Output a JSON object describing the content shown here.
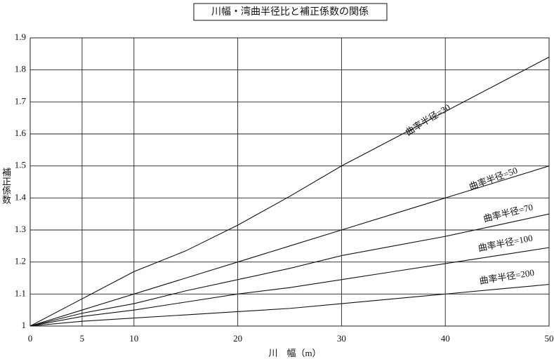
{
  "chart_data": {
    "type": "line",
    "title": "川幅・湾曲半径比と補正係数の関係",
    "x_label": "川　幅（m）",
    "y_label": "補正係数",
    "x": [
      0,
      5,
      10,
      15,
      20,
      25,
      30,
      35,
      40,
      45,
      50
    ],
    "series": [
      {
        "name": "曲率半径=30",
        "color": "#111111",
        "values": [
          1,
          1.085,
          1.17,
          1.235,
          1.315,
          1.405,
          1.5,
          1.585,
          1.67,
          1.755,
          1.84
        ]
      },
      {
        "name": "曲率半径=50",
        "color": "#111111",
        "values": [
          1,
          1.05,
          1.1,
          1.15,
          1.2,
          1.25,
          1.3,
          1.35,
          1.4,
          1.45,
          1.5
        ]
      },
      {
        "name": "曲率半径=70",
        "color": "#111111",
        "values": [
          1,
          1.04,
          1.07,
          1.11,
          1.145,
          1.18,
          1.22,
          1.25,
          1.28,
          1.315,
          1.35
        ]
      },
      {
        "name": "曲率半径=100",
        "color": "#111111",
        "values": [
          1,
          1.03,
          1.05,
          1.075,
          1.1,
          1.12,
          1.145,
          1.17,
          1.195,
          1.22,
          1.245
        ]
      },
      {
        "name": "曲率半径=200",
        "color": "#111111",
        "values": [
          1,
          1.015,
          1.025,
          1.035,
          1.045,
          1.055,
          1.07,
          1.085,
          1.1,
          1.115,
          1.13
        ]
      }
    ],
    "xlim": [
      0,
      50
    ],
    "xticks": [
      0,
      5,
      10,
      20,
      30,
      40,
      50
    ],
    "ylim": [
      1,
      1.9
    ],
    "yticks": [
      1,
      1.1,
      1.2,
      1.3,
      1.4,
      1.5,
      1.6,
      1.7,
      1.8,
      1.9
    ],
    "grid": true
  }
}
